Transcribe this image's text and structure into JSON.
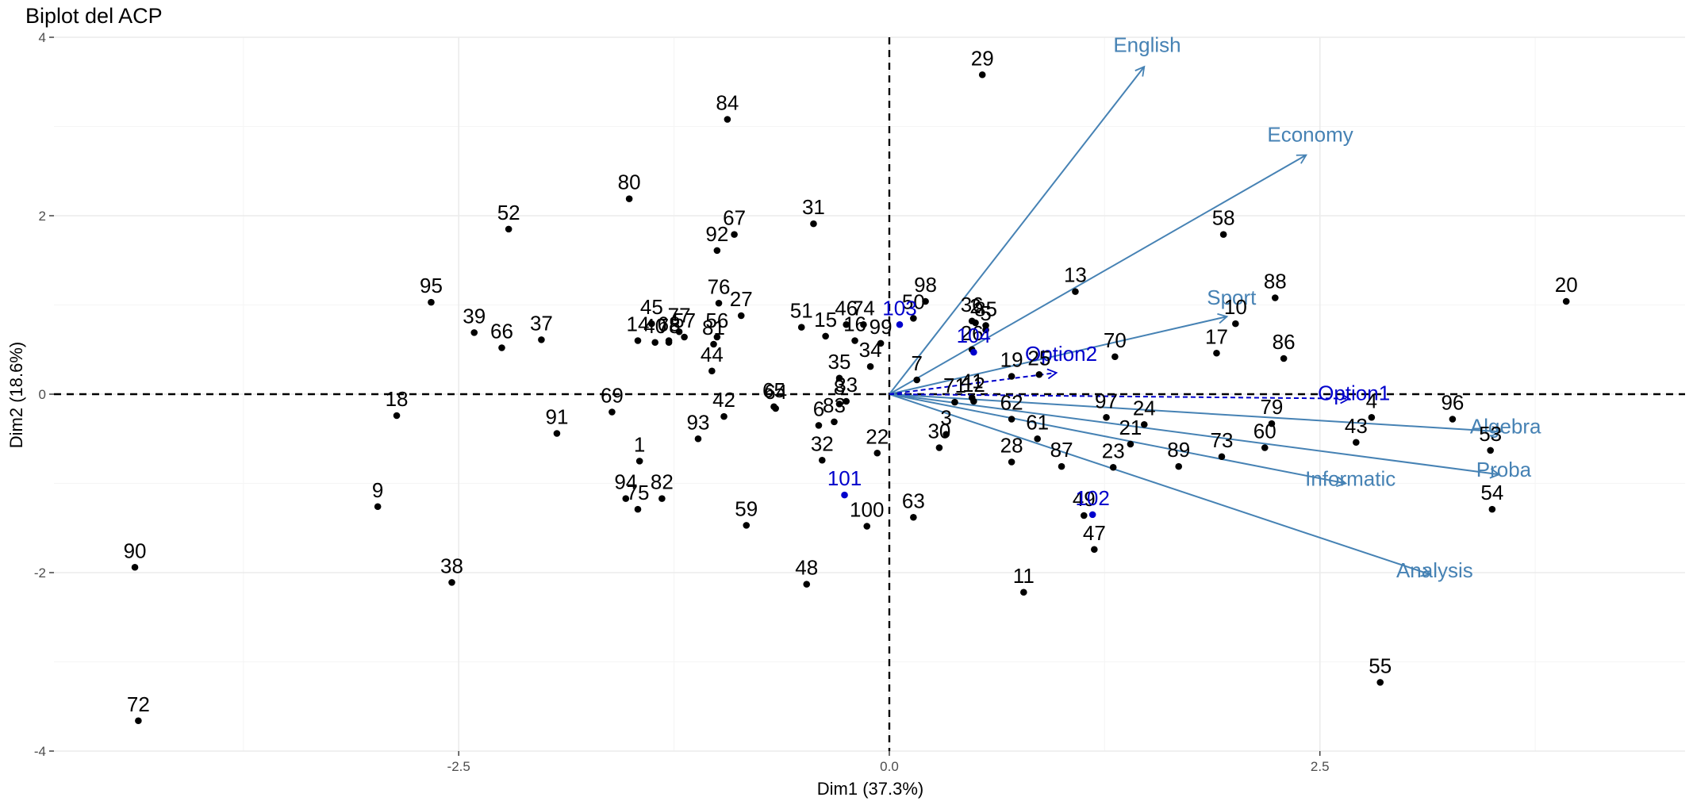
{
  "chart_data": {
    "type": "scatter",
    "title": "Biplot del ACP",
    "xlabel": "Dim1 (37.3%)",
    "ylabel": "Dim2 (18.6%)",
    "xlim": [
      -4.85,
      4.62
    ],
    "ylim": [
      -4.0,
      4.0
    ],
    "x_ticks": [
      -2.5,
      0.0,
      2.5
    ],
    "x_tick_labels": [
      "-2.5",
      "0.0",
      "2.5"
    ],
    "y_ticks": [
      -4,
      -2,
      0,
      2,
      4
    ],
    "y_tick_labels": [
      "-4",
      "-2",
      "0",
      "2",
      "4"
    ],
    "grid": true,
    "colors": {
      "individuals": "#000000",
      "supplementary": "#0000CC",
      "variables": "#4682B4",
      "supplementary_variables": "#0000CC"
    },
    "individuals": [
      {
        "label": "1",
        "x": -1.45,
        "y": -0.75
      },
      {
        "label": "2",
        "x": 0.5,
        "y": 0.8
      },
      {
        "label": "3",
        "x": 0.33,
        "y": -0.45
      },
      {
        "label": "4",
        "x": 2.8,
        "y": -0.26
      },
      {
        "label": "5",
        "x": 0.56,
        "y": 0.72
      },
      {
        "label": "6",
        "x": -0.41,
        "y": -0.35
      },
      {
        "label": "7",
        "x": 0.16,
        "y": 0.16
      },
      {
        "label": "8",
        "x": -0.29,
        "y": -0.11
      },
      {
        "label": "9",
        "x": -2.97,
        "y": -1.26
      },
      {
        "label": "10",
        "x": 2.01,
        "y": 0.79
      },
      {
        "label": "11",
        "x": 0.78,
        "y": -2.22
      },
      {
        "label": "12",
        "x": 0.49,
        "y": -0.08
      },
      {
        "label": "13",
        "x": 1.08,
        "y": 1.15
      },
      {
        "label": "14",
        "x": -1.46,
        "y": 0.6
      },
      {
        "label": "15",
        "x": -0.37,
        "y": 0.65
      },
      {
        "label": "16",
        "x": -0.2,
        "y": 0.6
      },
      {
        "label": "17",
        "x": 1.9,
        "y": 0.46
      },
      {
        "label": "18",
        "x": -2.86,
        "y": -0.24
      },
      {
        "label": "19",
        "x": 0.71,
        "y": 0.2
      },
      {
        "label": "20",
        "x": 3.93,
        "y": 1.04
      },
      {
        "label": "21",
        "x": 1.4,
        "y": -0.56
      },
      {
        "label": "22",
        "x": -0.07,
        "y": -0.66
      },
      {
        "label": "23",
        "x": 1.3,
        "y": -0.82
      },
      {
        "label": "24",
        "x": 1.48,
        "y": -0.34
      },
      {
        "label": "25",
        "x": 0.87,
        "y": 0.22
      },
      {
        "label": "26",
        "x": 0.48,
        "y": 0.5
      },
      {
        "label": "27",
        "x": -0.86,
        "y": 0.88
      },
      {
        "label": "28",
        "x": 0.71,
        "y": -0.76
      },
      {
        "label": "29",
        "x": 0.54,
        "y": 3.58
      },
      {
        "label": "30",
        "x": 0.29,
        "y": -0.6
      },
      {
        "label": "31",
        "x": -0.44,
        "y": 1.91
      },
      {
        "label": "32",
        "x": -0.39,
        "y": -0.74
      },
      {
        "label": "33",
        "x": -0.25,
        "y": -0.08
      },
      {
        "label": "34",
        "x": -0.11,
        "y": 0.31
      },
      {
        "label": "35",
        "x": -0.29,
        "y": 0.18
      },
      {
        "label": "36",
        "x": 0.48,
        "y": 0.82
      },
      {
        "label": "37",
        "x": -2.02,
        "y": 0.61
      },
      {
        "label": "38",
        "x": -2.54,
        "y": -2.11
      },
      {
        "label": "39",
        "x": -2.41,
        "y": 0.69
      },
      {
        "label": "40",
        "x": -1.36,
        "y": 0.58
      },
      {
        "label": "41",
        "x": 0.48,
        "y": -0.04
      },
      {
        "label": "42",
        "x": -0.96,
        "y": -0.25
      },
      {
        "label": "43",
        "x": 2.71,
        "y": -0.54
      },
      {
        "label": "44",
        "x": -1.03,
        "y": 0.26
      },
      {
        "label": "45",
        "x": -1.38,
        "y": 0.79
      },
      {
        "label": "46",
        "x": -0.25,
        "y": 0.78
      },
      {
        "label": "47",
        "x": 1.19,
        "y": -1.74
      },
      {
        "label": "48",
        "x": -0.48,
        "y": -2.13
      },
      {
        "label": "49",
        "x": 1.13,
        "y": -1.36
      },
      {
        "label": "50",
        "x": 0.14,
        "y": 0.85
      },
      {
        "label": "51",
        "x": -0.51,
        "y": 0.75
      },
      {
        "label": "52",
        "x": -2.21,
        "y": 1.85
      },
      {
        "label": "53",
        "x": 3.49,
        "y": -0.63
      },
      {
        "label": "54",
        "x": 3.5,
        "y": -1.29
      },
      {
        "label": "55",
        "x": 2.85,
        "y": -3.23
      },
      {
        "label": "56",
        "x": -1.0,
        "y": 0.64
      },
      {
        "label": "57",
        "x": -1.19,
        "y": 0.64
      },
      {
        "label": "58",
        "x": 1.94,
        "y": 1.79
      },
      {
        "label": "59",
        "x": -0.83,
        "y": -1.47
      },
      {
        "label": "60",
        "x": 2.18,
        "y": -0.6
      },
      {
        "label": "61",
        "x": 0.86,
        "y": -0.5
      },
      {
        "label": "62",
        "x": 0.71,
        "y": -0.28
      },
      {
        "label": "63",
        "x": 0.14,
        "y": -1.38
      },
      {
        "label": "64",
        "x": -0.66,
        "y": -0.16
      },
      {
        "label": "65",
        "x": -0.67,
        "y": -0.14
      },
      {
        "label": "66",
        "x": -2.25,
        "y": 0.52
      },
      {
        "label": "67",
        "x": -0.9,
        "y": 1.79
      },
      {
        "label": "68",
        "x": -1.28,
        "y": 0.6
      },
      {
        "label": "69",
        "x": -1.61,
        "y": -0.2
      },
      {
        "label": "70",
        "x": 1.31,
        "y": 0.42
      },
      {
        "label": "71",
        "x": 0.38,
        "y": -0.09
      },
      {
        "label": "72",
        "x": -4.36,
        "y": -3.66
      },
      {
        "label": "73",
        "x": 1.93,
        "y": -0.7
      },
      {
        "label": "74",
        "x": -0.15,
        "y": 0.78
      },
      {
        "label": "75",
        "x": -1.46,
        "y": -1.29
      },
      {
        "label": "76",
        "x": -0.99,
        "y": 1.02
      },
      {
        "label": "77",
        "x": -1.22,
        "y": 0.7
      },
      {
        "label": "78",
        "x": -1.28,
        "y": 0.58
      },
      {
        "label": "79",
        "x": 2.22,
        "y": -0.33
      },
      {
        "label": "80",
        "x": -1.51,
        "y": 2.19
      },
      {
        "label": "81",
        "x": -1.02,
        "y": 0.56
      },
      {
        "label": "82",
        "x": -1.32,
        "y": -1.17
      },
      {
        "label": "83",
        "x": -0.32,
        "y": -0.31
      },
      {
        "label": "84",
        "x": -0.94,
        "y": 3.08
      },
      {
        "label": "85",
        "x": 0.56,
        "y": 0.77
      },
      {
        "label": "86",
        "x": 2.29,
        "y": 0.4
      },
      {
        "label": "87",
        "x": 1.0,
        "y": -0.81
      },
      {
        "label": "88",
        "x": 2.24,
        "y": 1.08
      },
      {
        "label": "89",
        "x": 1.68,
        "y": -0.81
      },
      {
        "label": "90",
        "x": -4.38,
        "y": -1.94
      },
      {
        "label": "91",
        "x": -1.93,
        "y": -0.44
      },
      {
        "label": "92",
        "x": -1.0,
        "y": 1.61
      },
      {
        "label": "93",
        "x": -1.11,
        "y": -0.5
      },
      {
        "label": "94",
        "x": -1.53,
        "y": -1.17
      },
      {
        "label": "95",
        "x": -2.66,
        "y": 1.03
      },
      {
        "label": "96",
        "x": 3.27,
        "y": -0.28
      },
      {
        "label": "97",
        "x": 1.26,
        "y": -0.26
      },
      {
        "label": "98",
        "x": 0.21,
        "y": 1.04
      },
      {
        "label": "99",
        "x": -0.05,
        "y": 0.57
      },
      {
        "label": "100",
        "x": -0.13,
        "y": -1.48
      }
    ],
    "supplementary_individuals": [
      {
        "label": "101",
        "x": -0.26,
        "y": -1.13
      },
      {
        "label": "102",
        "x": 1.18,
        "y": -1.35
      },
      {
        "label": "103",
        "x": 0.06,
        "y": 0.78
      },
      {
        "label": "104",
        "x": 0.49,
        "y": 0.47
      }
    ],
    "variables": [
      {
        "label": "English",
        "x": 1.48,
        "y": 3.67
      },
      {
        "label": "Economy",
        "x": 2.42,
        "y": 2.68
      },
      {
        "label": "Sport",
        "x": 1.96,
        "y": 0.87
      },
      {
        "label": "Algebra",
        "x": 3.55,
        "y": -0.42
      },
      {
        "label": "Proba",
        "x": 3.54,
        "y": -0.9
      },
      {
        "label": "Informatic",
        "x": 2.65,
        "y": -1.0
      },
      {
        "label": "Analysis",
        "x": 3.14,
        "y": -2.02
      }
    ],
    "supplementary_variables": [
      {
        "label": "Option1",
        "x": 2.67,
        "y": -0.05
      },
      {
        "label": "Option2",
        "x": 0.97,
        "y": 0.24
      }
    ]
  }
}
